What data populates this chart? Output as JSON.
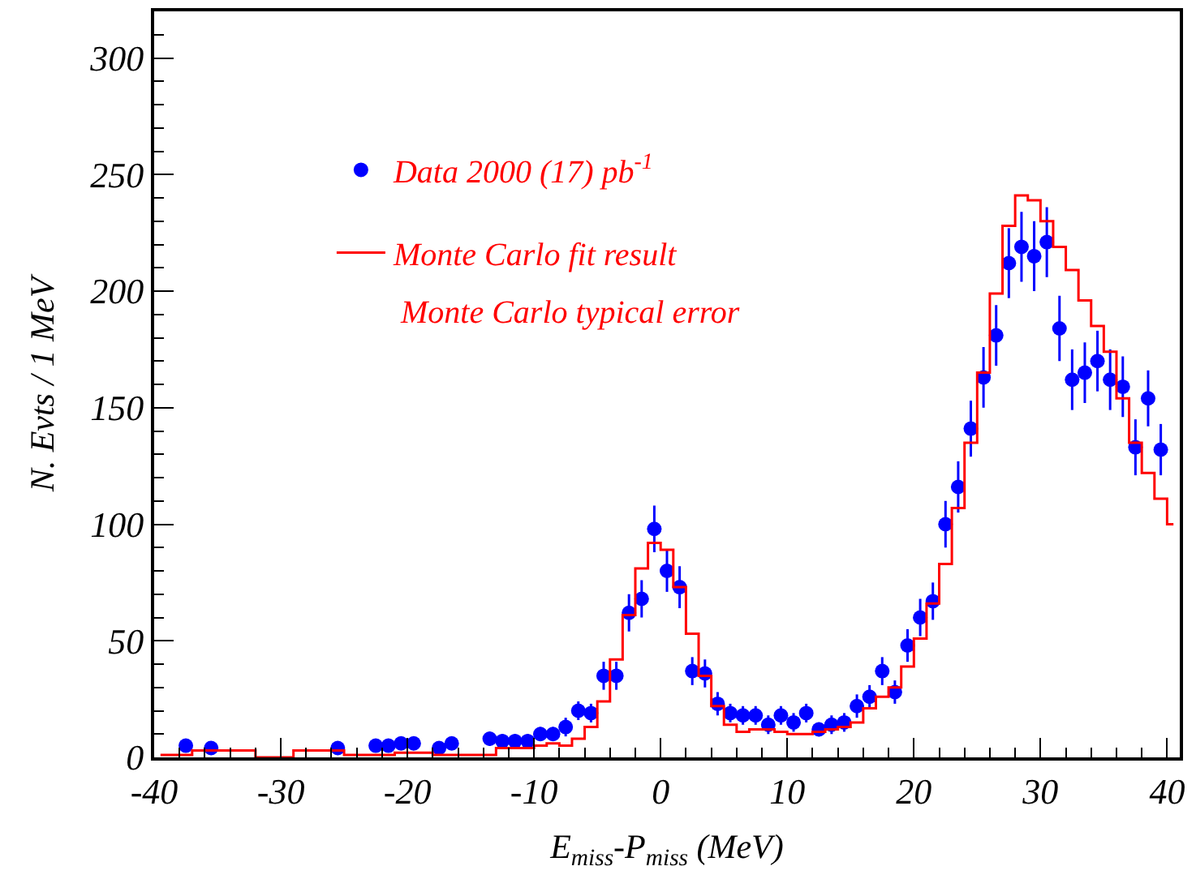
{
  "chart_data": {
    "type": "scatter",
    "xlabel": "E$_{miss}$-P$_{miss}$ (MeV)",
    "ylabel": "N. Evts / 1 MeV",
    "xlim": [
      -40,
      41
    ],
    "xticks": [
      -40,
      -30,
      -20,
      -10,
      0,
      10,
      20,
      30,
      40
    ],
    "ylim": [
      0,
      320
    ],
    "yticks": [
      0,
      50,
      100,
      150,
      200,
      250,
      300
    ],
    "legend": "top left",
    "annotations": [
      "Monte Carlo typical error"
    ],
    "series": [
      {
        "name": "Data 2000 (17) pb$^{-1}$",
        "marker": "circle",
        "color": "#0000ff",
        "x": [
          -37.5,
          -35.5,
          -25.5,
          -22.5,
          -21.5,
          -20.5,
          -19.5,
          -17.5,
          -16.5,
          -13.5,
          -12.5,
          -11.5,
          -10.5,
          -9.5,
          -8.5,
          -7.5,
          -6.5,
          -5.5,
          -4.5,
          -3.5,
          -2.5,
          -1.5,
          -0.5,
          0.5,
          1.5,
          2.5,
          3.5,
          4.5,
          5.5,
          6.5,
          7.5,
          8.5,
          9.5,
          10.5,
          11.5,
          12.5,
          13.5,
          14.5,
          15.5,
          16.5,
          17.5,
          18.5,
          19.5,
          20.5,
          21.5,
          22.5,
          23.5,
          24.5,
          25.5,
          26.5,
          27.5,
          28.5,
          29.5,
          30.5,
          31.5,
          32.5,
          33.5,
          34.5,
          35.5,
          36.5,
          37.5,
          38.5,
          39.5
        ],
        "values": [
          5,
          4,
          4,
          5,
          5,
          6,
          6,
          4,
          6,
          8,
          7,
          7,
          7,
          10,
          10,
          13,
          20,
          19,
          35,
          35,
          62,
          68,
          98,
          80,
          73,
          37,
          36,
          23,
          19,
          18,
          18,
          14,
          18,
          15,
          19,
          12,
          14,
          15,
          22,
          26,
          37,
          28,
          48,
          60,
          67,
          100,
          116,
          141,
          163,
          181,
          212,
          219,
          215,
          221,
          184,
          162,
          165,
          170,
          162,
          159,
          133,
          154,
          132
        ],
        "errors": [
          2,
          2,
          2,
          2,
          2,
          2,
          2,
          2,
          2,
          3,
          3,
          3,
          3,
          3,
          3,
          4,
          4,
          4,
          6,
          6,
          8,
          8,
          10,
          9,
          9,
          6,
          6,
          5,
          4,
          4,
          4,
          4,
          4,
          4,
          4,
          3,
          4,
          4,
          5,
          5,
          6,
          5,
          7,
          8,
          8,
          10,
          11,
          12,
          13,
          13,
          15,
          15,
          15,
          15,
          14,
          13,
          13,
          13,
          13,
          13,
          12,
          12,
          11
        ]
      },
      {
        "name": "Monte Carlo fit result",
        "type": "step",
        "marker": "none",
        "color": "#ff0000",
        "x": [
          -39.5,
          -38.5,
          -37.5,
          -36.5,
          -35.5,
          -34.5,
          -33.5,
          -32.5,
          -31.5,
          -30.5,
          -29.5,
          -28.5,
          -27.5,
          -26.5,
          -25.5,
          -24.5,
          -23.5,
          -22.5,
          -21.5,
          -20.5,
          -19.5,
          -18.5,
          -17.5,
          -16.5,
          -15.5,
          -14.5,
          -13.5,
          -12.5,
          -11.5,
          -10.5,
          -9.5,
          -8.5,
          -7.5,
          -6.5,
          -5.5,
          -4.5,
          -3.5,
          -2.5,
          -1.5,
          -0.5,
          0.5,
          1.5,
          2.5,
          3.5,
          4.5,
          5.5,
          6.5,
          7.5,
          8.5,
          9.5,
          10.5,
          11.5,
          12.5,
          13.5,
          14.5,
          15.5,
          16.5,
          17.5,
          18.5,
          19.5,
          20.5,
          21.5,
          22.5,
          23.5,
          24.5,
          25.5,
          26.5,
          27.5,
          28.5,
          29.5,
          30.5,
          31.5,
          32.5,
          33.5,
          34.5,
          35.5,
          36.5,
          37.5,
          38.5,
          39.5,
          40.5
        ],
        "values": [
          1,
          1,
          1,
          3,
          3,
          3,
          3,
          3,
          0,
          0,
          0,
          3,
          3,
          3,
          3,
          1,
          1,
          1,
          1,
          2,
          2,
          2,
          1,
          1,
          1,
          1,
          1,
          4,
          4,
          4,
          5,
          6,
          5,
          8,
          13,
          24,
          42,
          61,
          81,
          92,
          89,
          73,
          53,
          35,
          22,
          14,
          11,
          12,
          12,
          11,
          10,
          10,
          11,
          12,
          13,
          15,
          21,
          26,
          30,
          39,
          51,
          66,
          83,
          107,
          135,
          165,
          199,
          228,
          241,
          239,
          230,
          219,
          209,
          196,
          185,
          174,
          154,
          135,
          122,
          111,
          100
        ]
      }
    ]
  }
}
